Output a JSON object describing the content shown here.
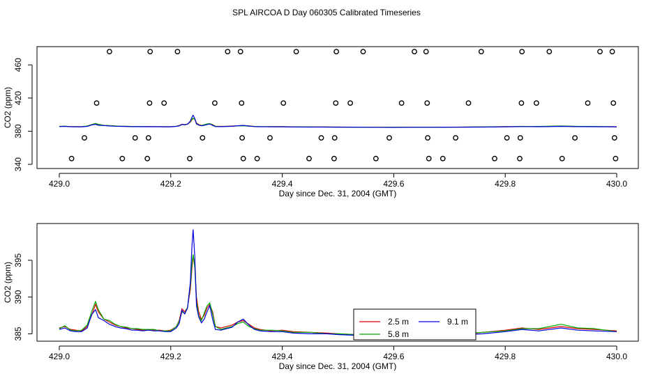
{
  "title": "SPL AIRCOA D  Day 060305  Calibrated Timeseries",
  "chart_data": [
    {
      "type": "scatter+line",
      "xlabel": "Day since Dec. 31, 2004 (GMT)",
      "ylabel": "CO2 (ppm)",
      "xlim": [
        429.0,
        430.0
      ],
      "ylim": [
        335,
        482
      ],
      "xticks": [
        "429.0",
        "429.2",
        "429.4",
        "429.6",
        "429.8",
        "430.0"
      ],
      "yticks": [
        "340",
        "380",
        "420",
        "460"
      ],
      "ytick_values": [
        340,
        380,
        420,
        460
      ],
      "xtick_values": [
        429.0,
        429.2,
        429.4,
        429.6,
        429.8,
        430.0
      ],
      "calibration_points": [
        {
          "x": 429.022,
          "y": 347
        },
        {
          "x": 429.045,
          "y": 372
        },
        {
          "x": 429.067,
          "y": 414
        },
        {
          "x": 429.09,
          "y": 476
        },
        {
          "x": 429.113,
          "y": 347
        },
        {
          "x": 429.136,
          "y": 372
        },
        {
          "x": 429.158,
          "y": 347
        },
        {
          "x": 429.16,
          "y": 372
        },
        {
          "x": 429.162,
          "y": 414
        },
        {
          "x": 429.163,
          "y": 476
        },
        {
          "x": 429.188,
          "y": 414
        },
        {
          "x": 429.212,
          "y": 476
        },
        {
          "x": 429.234,
          "y": 347
        },
        {
          "x": 429.257,
          "y": 372
        },
        {
          "x": 429.279,
          "y": 414
        },
        {
          "x": 429.302,
          "y": 476
        },
        {
          "x": 429.325,
          "y": 476
        },
        {
          "x": 429.327,
          "y": 414
        },
        {
          "x": 429.328,
          "y": 372
        },
        {
          "x": 429.33,
          "y": 347
        },
        {
          "x": 429.355,
          "y": 347
        },
        {
          "x": 429.378,
          "y": 372
        },
        {
          "x": 429.402,
          "y": 414
        },
        {
          "x": 429.425,
          "y": 476
        },
        {
          "x": 429.448,
          "y": 347
        },
        {
          "x": 429.47,
          "y": 372
        },
        {
          "x": 429.493,
          "y": 347
        },
        {
          "x": 429.494,
          "y": 372
        },
        {
          "x": 429.496,
          "y": 414
        },
        {
          "x": 429.497,
          "y": 476
        },
        {
          "x": 429.522,
          "y": 414
        },
        {
          "x": 429.545,
          "y": 476
        },
        {
          "x": 429.568,
          "y": 347
        },
        {
          "x": 429.592,
          "y": 372
        },
        {
          "x": 429.614,
          "y": 414
        },
        {
          "x": 429.637,
          "y": 476
        },
        {
          "x": 429.658,
          "y": 476
        },
        {
          "x": 429.66,
          "y": 414
        },
        {
          "x": 429.661,
          "y": 372
        },
        {
          "x": 429.663,
          "y": 347
        },
        {
          "x": 429.688,
          "y": 347
        },
        {
          "x": 429.711,
          "y": 372
        },
        {
          "x": 429.734,
          "y": 414
        },
        {
          "x": 429.757,
          "y": 476
        },
        {
          "x": 429.781,
          "y": 347
        },
        {
          "x": 429.803,
          "y": 372
        },
        {
          "x": 429.826,
          "y": 347
        },
        {
          "x": 429.827,
          "y": 372
        },
        {
          "x": 429.829,
          "y": 414
        },
        {
          "x": 429.83,
          "y": 476
        },
        {
          "x": 429.856,
          "y": 414
        },
        {
          "x": 429.879,
          "y": 476
        },
        {
          "x": 429.902,
          "y": 347
        },
        {
          "x": 429.925,
          "y": 372
        },
        {
          "x": 429.948,
          "y": 414
        },
        {
          "x": 429.97,
          "y": 476
        },
        {
          "x": 429.992,
          "y": 476
        },
        {
          "x": 429.994,
          "y": 414
        },
        {
          "x": 429.996,
          "y": 372
        },
        {
          "x": 429.998,
          "y": 347
        }
      ],
      "series": [
        {
          "color": "#dd0000",
          "values_ref": "series_points"
        },
        {
          "color": "#00aa00",
          "values_ref": "series_points"
        },
        {
          "color": "#0000dd",
          "values_ref": "series_points"
        }
      ]
    },
    {
      "type": "line",
      "xlabel": "Day since Dec. 31, 2004 (GMT)",
      "ylabel": "CO2 (ppm)",
      "xlim": [
        429.0,
        430.0
      ],
      "ylim": [
        384,
        400
      ],
      "xticks": [
        "429.0",
        "429.2",
        "429.4",
        "429.6",
        "429.8",
        "430.0"
      ],
      "yticks": [
        "385",
        "390",
        "395"
      ],
      "ytick_values": [
        385,
        390,
        395
      ],
      "xtick_values": [
        429.0,
        429.2,
        429.4,
        429.6,
        429.8,
        430.0
      ],
      "legend": {
        "placement": "bottom-center",
        "entries": [
          {
            "name": "2.5 m",
            "color": "#dd0000"
          },
          {
            "name": "9.1 m",
            "color": "#0000dd"
          },
          {
            "name": "5.8 m",
            "color": "#00aa00"
          }
        ]
      },
      "series_points": {
        "x": [
          429.0,
          429.01,
          429.02,
          429.03,
          429.04,
          429.05,
          429.058,
          429.065,
          429.07,
          429.08,
          429.09,
          429.1,
          429.11,
          429.12,
          429.13,
          429.14,
          429.15,
          429.16,
          429.17,
          429.18,
          429.19,
          429.2,
          429.21,
          429.215,
          429.22,
          429.225,
          429.23,
          429.235,
          429.238,
          429.24,
          429.243,
          429.246,
          429.25,
          429.255,
          429.26,
          429.265,
          429.27,
          429.275,
          429.28,
          429.29,
          429.3,
          429.31,
          429.32,
          429.33,
          429.34,
          429.35,
          429.36,
          429.38,
          429.4,
          429.42,
          429.45,
          429.48,
          429.5,
          429.53,
          429.56,
          429.6,
          429.63,
          429.66,
          429.7,
          429.73,
          429.76,
          429.8,
          429.83,
          429.86,
          429.9,
          429.93,
          429.96,
          430.0
        ],
        "red": [
          385.8,
          386.0,
          385.6,
          385.5,
          385.4,
          386.0,
          387.5,
          389.0,
          388.0,
          387.0,
          386.6,
          386.2,
          386.0,
          385.8,
          385.7,
          385.6,
          385.5,
          385.6,
          385.5,
          385.5,
          385.4,
          385.5,
          386.0,
          386.8,
          388.4,
          388.0,
          388.6,
          391.0,
          394.0,
          395.5,
          394.5,
          390.0,
          388.0,
          387.0,
          387.5,
          388.5,
          389.0,
          388.0,
          386.0,
          385.8,
          386.0,
          386.2,
          386.6,
          386.8,
          386.3,
          385.8,
          385.6,
          385.4,
          385.5,
          385.3,
          385.2,
          385.1,
          385.0,
          384.9,
          384.8,
          384.7,
          384.9,
          384.8,
          384.9,
          385.0,
          385.2,
          385.5,
          385.8,
          385.6,
          386.0,
          385.7,
          385.6,
          385.4
        ],
        "green": [
          385.7,
          386.1,
          385.5,
          385.4,
          385.5,
          386.2,
          388.0,
          389.4,
          388.3,
          387.0,
          386.8,
          386.3,
          386.0,
          385.9,
          385.7,
          385.7,
          385.6,
          385.6,
          385.6,
          385.4,
          385.4,
          385.4,
          386.0,
          386.7,
          388.0,
          387.8,
          388.6,
          391.5,
          394.6,
          395.8,
          394.0,
          389.5,
          387.5,
          386.8,
          387.8,
          388.8,
          389.2,
          387.7,
          386.0,
          385.6,
          385.8,
          386.0,
          386.4,
          386.6,
          386.0,
          385.7,
          385.5,
          385.5,
          385.4,
          385.2,
          385.2,
          385.0,
          385.0,
          384.9,
          384.7,
          384.8,
          384.8,
          384.9,
          384.8,
          385.1,
          385.2,
          385.4,
          385.7,
          385.7,
          386.3,
          385.8,
          385.7,
          385.3
        ],
        "blue": [
          385.6,
          385.8,
          385.4,
          385.3,
          385.3,
          385.8,
          387.6,
          388.3,
          387.2,
          386.8,
          386.3,
          386.0,
          385.8,
          385.7,
          385.5,
          385.5,
          385.4,
          385.5,
          385.4,
          385.4,
          385.3,
          385.3,
          385.8,
          386.4,
          388.2,
          387.7,
          388.5,
          392.0,
          397.0,
          399.2,
          395.5,
          388.8,
          387.3,
          386.5,
          387.0,
          388.0,
          388.8,
          387.0,
          385.6,
          385.5,
          385.7,
          385.9,
          386.6,
          387.0,
          386.2,
          385.6,
          385.4,
          385.3,
          385.3,
          385.1,
          385.0,
          385.0,
          384.9,
          384.8,
          384.7,
          384.6,
          384.7,
          384.7,
          384.8,
          384.9,
          385.0,
          385.3,
          385.6,
          385.4,
          385.8,
          385.5,
          385.4,
          385.3
        ]
      }
    }
  ]
}
